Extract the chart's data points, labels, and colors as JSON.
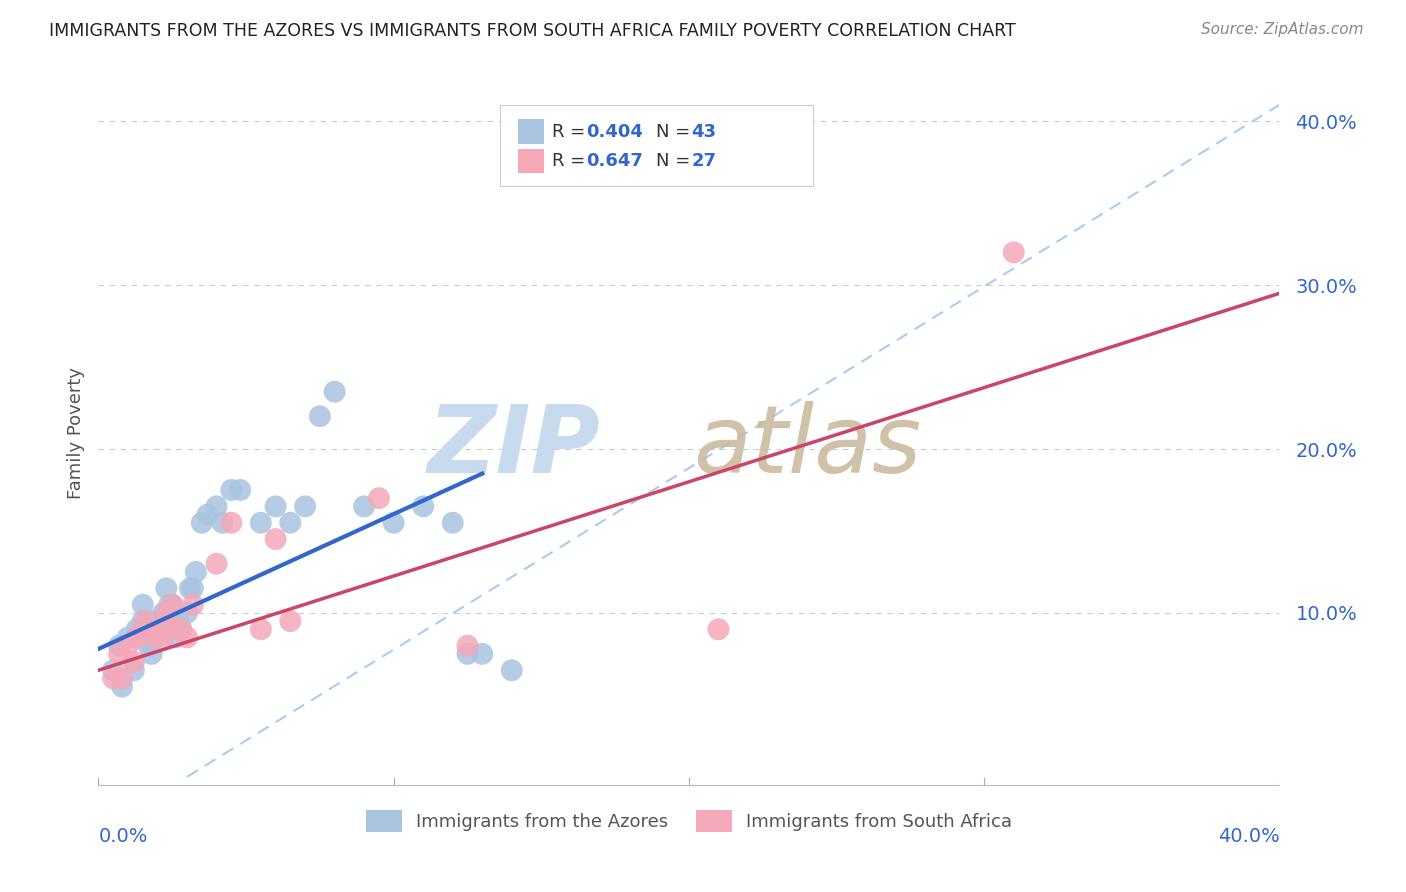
{
  "title": "IMMIGRANTS FROM THE AZORES VS IMMIGRANTS FROM SOUTH AFRICA FAMILY POVERTY CORRELATION CHART",
  "source": "Source: ZipAtlas.com",
  "ylabel": "Family Poverty",
  "xlim": [
    0.0,
    0.4
  ],
  "ylim": [
    -0.005,
    0.425
  ],
  "yticks": [
    0.1,
    0.2,
    0.3,
    0.4
  ],
  "ytick_labels": [
    "10.0%",
    "20.0%",
    "30.0%",
    "40.0%"
  ],
  "azores_R": 0.404,
  "azores_N": 43,
  "sa_R": 0.647,
  "sa_N": 27,
  "azores_color": "#aac4e0",
  "sa_color": "#f4a8b8",
  "azores_line_color": "#3366cc",
  "sa_line_color": "#cc4466",
  "ref_line_color": "#aaccee",
  "zip_color": "#c8daee",
  "atlas_color": "#c8b89a",
  "legend_text_color": "#3366cc",
  "azores_points_x": [
    0.005,
    0.007,
    0.008,
    0.01,
    0.012,
    0.013,
    0.015,
    0.015,
    0.017,
    0.018,
    0.019,
    0.02,
    0.021,
    0.022,
    0.023,
    0.024,
    0.025,
    0.026,
    0.027,
    0.028,
    0.03,
    0.031,
    0.032,
    0.033,
    0.035,
    0.037,
    0.04,
    0.042,
    0.045,
    0.048,
    0.055,
    0.06,
    0.065,
    0.07,
    0.075,
    0.08,
    0.09,
    0.1,
    0.11,
    0.12,
    0.125,
    0.13,
    0.14
  ],
  "azores_points_y": [
    0.065,
    0.08,
    0.055,
    0.085,
    0.065,
    0.09,
    0.095,
    0.105,
    0.08,
    0.075,
    0.095,
    0.09,
    0.095,
    0.1,
    0.115,
    0.105,
    0.105,
    0.085,
    0.095,
    0.09,
    0.1,
    0.115,
    0.115,
    0.125,
    0.155,
    0.16,
    0.165,
    0.155,
    0.175,
    0.175,
    0.155,
    0.165,
    0.155,
    0.165,
    0.22,
    0.235,
    0.165,
    0.155,
    0.165,
    0.155,
    0.075,
    0.075,
    0.065
  ],
  "sa_points_x": [
    0.005,
    0.007,
    0.008,
    0.01,
    0.012,
    0.013,
    0.015,
    0.016,
    0.018,
    0.019,
    0.021,
    0.022,
    0.023,
    0.025,
    0.027,
    0.028,
    0.03,
    0.032,
    0.04,
    0.045,
    0.055,
    0.06,
    0.065,
    0.095,
    0.125,
    0.21,
    0.31
  ],
  "sa_points_y": [
    0.06,
    0.075,
    0.06,
    0.08,
    0.07,
    0.085,
    0.09,
    0.095,
    0.09,
    0.085,
    0.09,
    0.085,
    0.1,
    0.105,
    0.09,
    0.09,
    0.085,
    0.105,
    0.13,
    0.155,
    0.09,
    0.145,
    0.095,
    0.17,
    0.08,
    0.09,
    0.32
  ],
  "azores_line_x0": 0.0,
  "azores_line_y0": 0.078,
  "azores_line_x1": 0.13,
  "azores_line_y1": 0.185,
  "sa_line_x0": 0.0,
  "sa_line_y0": 0.065,
  "sa_line_x1": 0.4,
  "sa_line_y1": 0.295,
  "ref_line_x0": 0.03,
  "ref_line_y0": 0.0,
  "ref_line_x1": 0.4,
  "ref_line_y1": 0.41
}
